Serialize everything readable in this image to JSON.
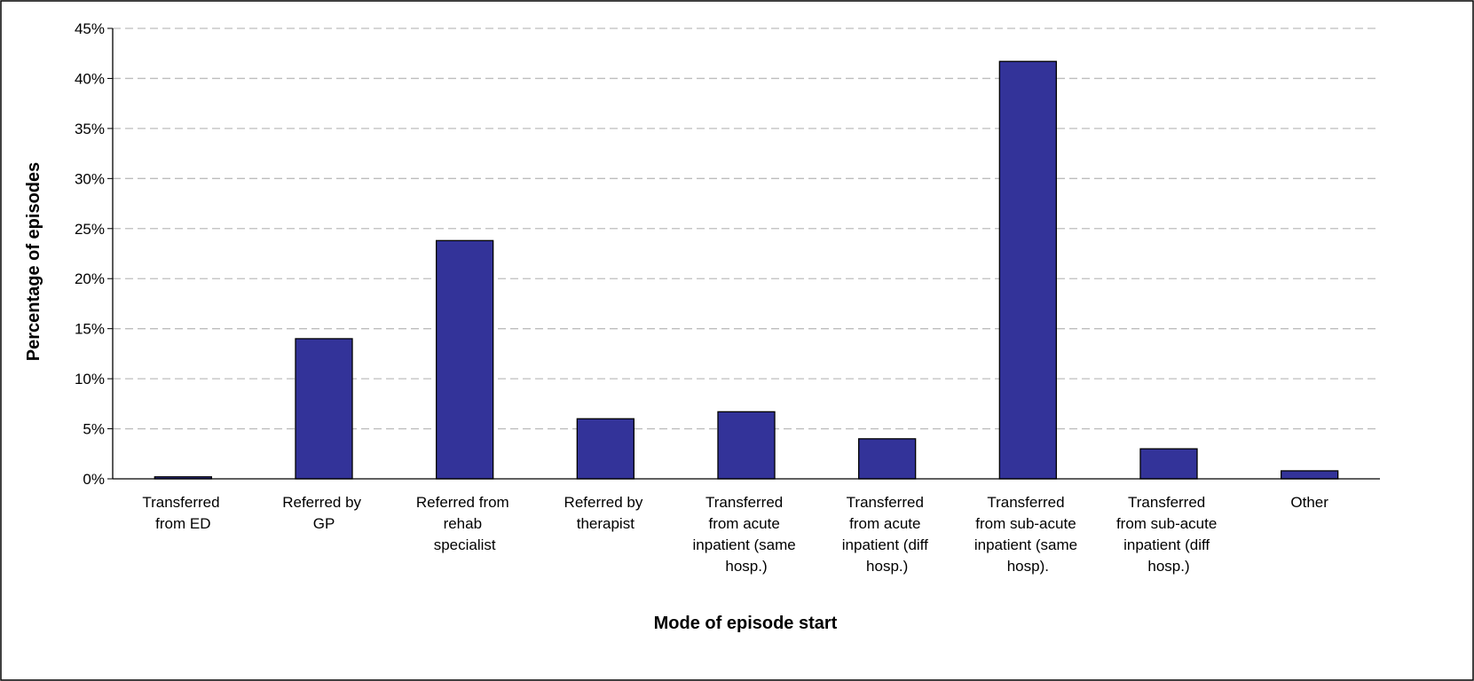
{
  "chart_data": {
    "type": "bar",
    "x_label": "Mode of episode start",
    "y_label": "Percentage  of episodes",
    "categories": [
      "Transferred from ED",
      "Referred by GP",
      "Referred from rehab specialist",
      "Referred by therapist",
      "Transferred from acute inpatient (same hosp.)",
      "Transferred from acute inpatient (diff hosp.)",
      "Transferred from sub-acute inpatient (same hosp).",
      "Transferred from sub-acute inpatient (diff hosp.)",
      "Other"
    ],
    "values": [
      0.2,
      14.0,
      23.8,
      6.0,
      6.7,
      4.0,
      41.7,
      3.0,
      0.8
    ],
    "color": "#333399",
    "ylim": [
      0,
      45
    ],
    "yticks": [
      {
        "value": 0,
        "label": "0%"
      },
      {
        "value": 5,
        "label": "5%"
      },
      {
        "value": 10,
        "label": "10%"
      },
      {
        "value": 15,
        "label": "15%"
      },
      {
        "value": 20,
        "label": "20%"
      },
      {
        "value": 25,
        "label": "25%"
      },
      {
        "value": 30,
        "label": "30%"
      },
      {
        "value": 35,
        "label": "35%"
      },
      {
        "value": 40,
        "label": "40%"
      },
      {
        "value": 45,
        "label": "45%"
      }
    ],
    "grid": true
  }
}
